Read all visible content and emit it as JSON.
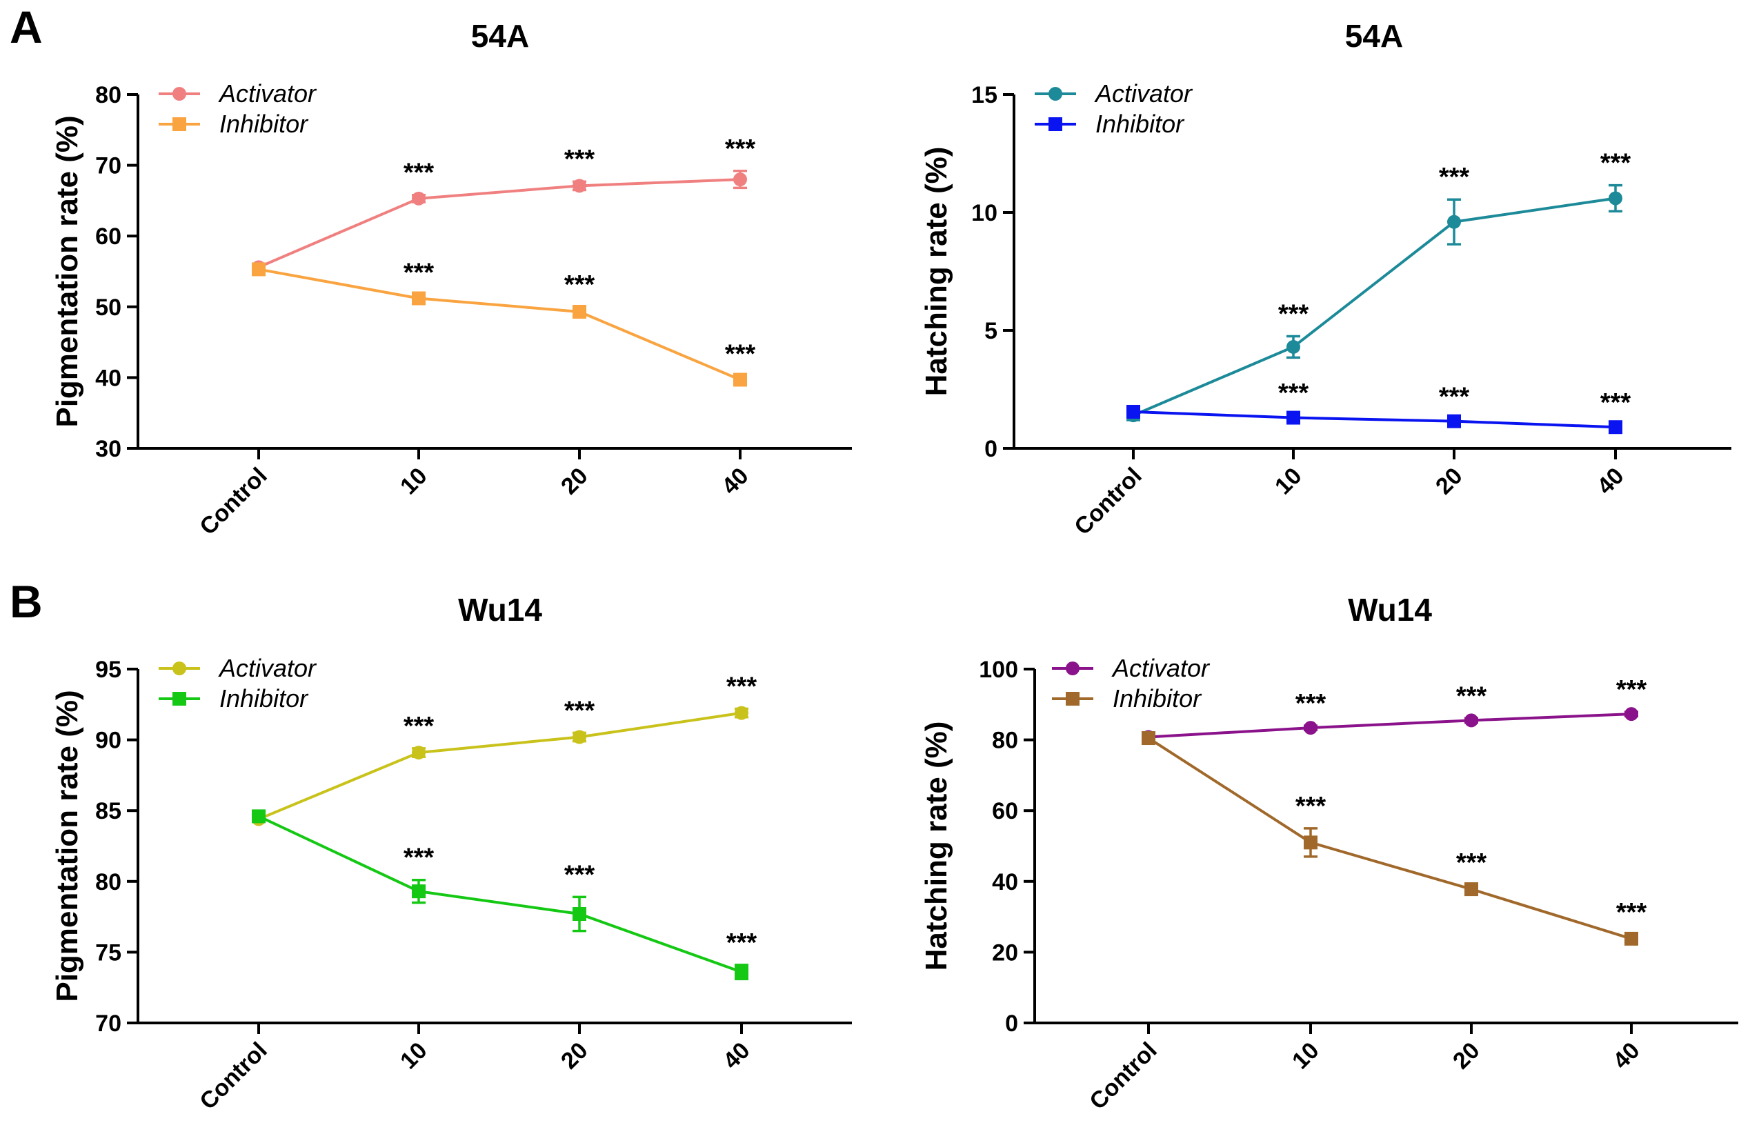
{
  "panels": {
    "A": {
      "letter": "A"
    },
    "B": {
      "letter": "B"
    }
  },
  "chart_data": [
    {
      "id": "A-pigmentation",
      "type": "line",
      "title": "54A",
      "xlabel": "",
      "ylabel": "Pigmentation rate (%)",
      "ylim": [
        30,
        80
      ],
      "yticks": [
        30,
        40,
        50,
        60,
        70,
        80
      ],
      "categories": [
        "Control",
        "10",
        "20",
        "40"
      ],
      "legend_position": "top-left",
      "series": [
        {
          "name": "Activator",
          "marker": "circle",
          "color": "#f08080",
          "values": [
            55.6,
            65.3,
            67.1,
            68.0
          ],
          "errors": [
            0.3,
            0.5,
            0.6,
            1.2
          ],
          "annotations": [
            "",
            "***",
            "***",
            "***"
          ]
        },
        {
          "name": "Inhibitor",
          "marker": "square",
          "color": "#f9a440",
          "values": [
            55.3,
            51.2,
            49.3,
            39.7
          ],
          "errors": [
            0.3,
            0.5,
            0.7,
            0.5
          ],
          "annotations": [
            "",
            "***",
            "***",
            "***"
          ]
        }
      ]
    },
    {
      "id": "A-hatching",
      "type": "line",
      "title": "54A",
      "xlabel": "",
      "ylabel": "Hatching rate (%)",
      "ylim": [
        0,
        15
      ],
      "yticks": [
        0,
        5,
        10,
        15
      ],
      "categories": [
        "Control",
        "10",
        "20",
        "40"
      ],
      "legend_position": "top-left",
      "series": [
        {
          "name": "Activator",
          "marker": "circle",
          "color": "#1c8a99",
          "values": [
            1.4,
            4.3,
            9.6,
            10.6
          ],
          "errors": [
            0.2,
            0.45,
            0.95,
            0.55
          ],
          "annotations": [
            "",
            "***",
            "***",
            "***"
          ]
        },
        {
          "name": "Inhibitor",
          "marker": "square",
          "color": "#0a14f0",
          "values": [
            1.55,
            1.3,
            1.15,
            0.9
          ],
          "errors": [
            0.1,
            0.1,
            0.1,
            0.1
          ],
          "annotations": [
            "",
            "***",
            "***",
            "***"
          ]
        }
      ]
    },
    {
      "id": "B-pigmentation",
      "type": "line",
      "title": "Wu14",
      "xlabel": "",
      "ylabel": "Pigmentation rate (%)",
      "ylim": [
        70,
        95
      ],
      "yticks": [
        70,
        75,
        80,
        85,
        90,
        95
      ],
      "categories": [
        "Control",
        "10",
        "20",
        "40"
      ],
      "legend_position": "top-left",
      "series": [
        {
          "name": "Activator",
          "marker": "circle",
          "color": "#c8c21a",
          "values": [
            84.4,
            89.1,
            90.2,
            91.9
          ],
          "errors": [
            0.2,
            0.3,
            0.3,
            0.3
          ],
          "annotations": [
            "",
            "***",
            "***",
            "***"
          ]
        },
        {
          "name": "Inhibitor",
          "marker": "square",
          "color": "#14c814",
          "values": [
            84.6,
            79.3,
            77.7,
            73.6
          ],
          "errors": [
            0.3,
            0.8,
            1.2,
            0.5
          ],
          "annotations": [
            "",
            "***",
            "***",
            "***"
          ]
        }
      ]
    },
    {
      "id": "B-hatching",
      "type": "line",
      "title": "Wu14",
      "xlabel": "",
      "ylabel": "Hatching rate (%)",
      "ylim": [
        0,
        100
      ],
      "yticks": [
        0,
        20,
        40,
        60,
        80,
        100
      ],
      "categories": [
        "Control",
        "10",
        "20",
        "40"
      ],
      "legend_position": "top-left",
      "series": [
        {
          "name": "Activator",
          "marker": "circle",
          "color": "#8a128a",
          "values": [
            80.8,
            83.4,
            85.5,
            87.3
          ],
          "errors": [
            0.6,
            0.6,
            0.6,
            0.6
          ],
          "annotations": [
            "",
            "***",
            "***",
            "***"
          ]
        },
        {
          "name": "Inhibitor",
          "marker": "square",
          "color": "#a0682a",
          "values": [
            80.5,
            51.0,
            37.8,
            23.8
          ],
          "errors": [
            1.0,
            4.0,
            1.2,
            1.2
          ],
          "annotations": [
            "",
            "***",
            "***",
            "***"
          ]
        }
      ]
    }
  ]
}
